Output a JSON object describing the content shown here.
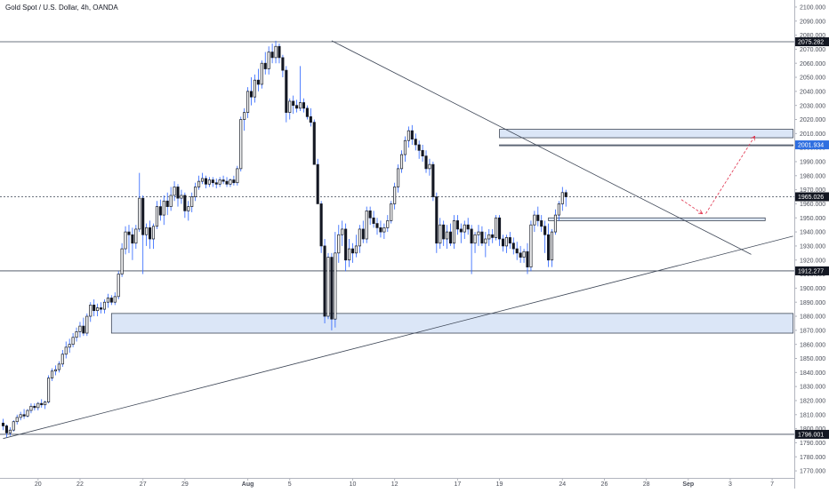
{
  "title": "Gold Spot / U.S. Dollar, 4h, OANDA",
  "colors": {
    "bull": "#131722",
    "bear": "#131722",
    "wick": "#2962ff",
    "zone_fill": "#dbe6f7",
    "zone_stroke": "#3d4656",
    "line": "#3d4656",
    "arrow": "#e0314c",
    "badge_blue": "#2e6ee0",
    "badge_dark": "#131722"
  },
  "chart_data": {
    "type": "candlestick",
    "title": "Gold Spot / U.S. Dollar, 4h, OANDA",
    "ylim": [
      1765,
      2105
    ],
    "y_ticks": [
      1770,
      1780,
      1790,
      1800,
      1810,
      1820,
      1830,
      1840,
      1850,
      1860,
      1870,
      1880,
      1890,
      1900,
      1910,
      1920,
      1930,
      1940,
      1950,
      1960,
      1970,
      1980,
      1990,
      2000,
      2010,
      2020,
      2030,
      2040,
      2050,
      2060,
      2070,
      2080,
      2090,
      2100
    ],
    "y_tick_labels": [
      "1770.000",
      "1780.000",
      "1790.000",
      "1800.000",
      "1810.000",
      "1820.000",
      "1830.000",
      "1840.000",
      "1850.000",
      "1860.000",
      "1870.000",
      "1880.000",
      "1890.000",
      "1900.000",
      "1910.000",
      "1920.000",
      "1930.000",
      "1940.000",
      "1950.000",
      "1960.000",
      "1970.000",
      "1980.000",
      "1990.000",
      "2000.000",
      "2010.000",
      "2020.000",
      "2030.000",
      "2040.000",
      "2050.000",
      "2060.000",
      "2070.000",
      "2080.000",
      "2090.000",
      "2100.000"
    ],
    "x_ticks": [
      {
        "label": "20",
        "bar": 10,
        "bold": false
      },
      {
        "label": "22",
        "bar": 22,
        "bold": false
      },
      {
        "label": "27",
        "bar": 40,
        "bold": false
      },
      {
        "label": "29",
        "bar": 52,
        "bold": false
      },
      {
        "label": "Aug",
        "bar": 70,
        "bold": true
      },
      {
        "label": "5",
        "bar": 82,
        "bold": false
      },
      {
        "label": "10",
        "bar": 100,
        "bold": false
      },
      {
        "label": "12",
        "bar": 112,
        "bold": false
      },
      {
        "label": "17",
        "bar": 130,
        "bold": false
      },
      {
        "label": "19",
        "bar": 142,
        "bold": false
      },
      {
        "label": "24",
        "bar": 160,
        "bold": false
      },
      {
        "label": "26",
        "bar": 172,
        "bold": false
      },
      {
        "label": "28",
        "bar": 184,
        "bold": false
      },
      {
        "label": "Sep",
        "bar": 196,
        "bold": true
      },
      {
        "label": "3",
        "bar": 208,
        "bold": false
      },
      {
        "label": "7",
        "bar": 220,
        "bold": false
      }
    ],
    "horizontal_levels": [
      {
        "value": 2075.282,
        "label": "2075.282",
        "style": "solid",
        "badge": "dark"
      },
      {
        "value": 1965.026,
        "label": "1965.026",
        "style": "dashed",
        "badge": "dark"
      },
      {
        "value": 1912.277,
        "label": "1912.277",
        "style": "solid",
        "badge": "dark"
      },
      {
        "value": 1796.001,
        "label": "1796.001",
        "style": "solid",
        "badge": "dark"
      }
    ],
    "price_badges": [
      {
        "value": 2001.934,
        "label": "2001.934",
        "badge": "blue"
      }
    ],
    "zones": [
      {
        "x0": 31,
        "x1": 226,
        "y0": 1868,
        "y1": 1882
      },
      {
        "x0": 142,
        "x1": 226,
        "y0": 2007,
        "y1": 2013
      },
      {
        "x0": 142,
        "x1": 226,
        "y0": 2001.934,
        "y1": 2001.934
      },
      {
        "x0": 156,
        "x1": 218,
        "y0": 1948,
        "y1": 1950
      }
    ],
    "trendlines": [
      {
        "x0": 94,
        "y0": 2076,
        "x1": 214,
        "y1": 1924
      },
      {
        "x0": 0,
        "y0": 1793,
        "x1": 226,
        "y1": 1937
      }
    ],
    "projection_arrows": [
      {
        "x0": 194,
        "y0": 1963,
        "x1": 200,
        "y1": 1953
      },
      {
        "x0": 201,
        "y0": 1953,
        "x1": 215,
        "y1": 2008
      }
    ],
    "candles": [
      [
        1804,
        1807,
        1799,
        1802
      ],
      [
        1802,
        1803,
        1794,
        1797
      ],
      [
        1797,
        1801,
        1795,
        1799
      ],
      [
        1799,
        1806,
        1798,
        1805
      ],
      [
        1805,
        1810,
        1803,
        1808
      ],
      [
        1808,
        1812,
        1806,
        1810
      ],
      [
        1810,
        1814,
        1807,
        1809
      ],
      [
        1809,
        1814,
        1808,
        1813
      ],
      [
        1813,
        1818,
        1811,
        1816
      ],
      [
        1816,
        1818,
        1813,
        1815
      ],
      [
        1815,
        1819,
        1813,
        1818
      ],
      [
        1818,
        1821,
        1815,
        1817
      ],
      [
        1817,
        1820,
        1814,
        1819
      ],
      [
        1819,
        1838,
        1818,
        1836
      ],
      [
        1836,
        1843,
        1834,
        1841
      ],
      [
        1841,
        1845,
        1838,
        1842
      ],
      [
        1842,
        1848,
        1840,
        1846
      ],
      [
        1846,
        1856,
        1844,
        1853
      ],
      [
        1853,
        1862,
        1850,
        1858
      ],
      [
        1858,
        1864,
        1854,
        1860
      ],
      [
        1860,
        1868,
        1858,
        1865
      ],
      [
        1865,
        1872,
        1862,
        1869
      ],
      [
        1869,
        1876,
        1865,
        1873
      ],
      [
        1873,
        1879,
        1866,
        1868
      ],
      [
        1868,
        1882,
        1866,
        1880
      ],
      [
        1880,
        1890,
        1876,
        1888
      ],
      [
        1888,
        1892,
        1880,
        1884
      ],
      [
        1884,
        1889,
        1880,
        1886
      ],
      [
        1886,
        1890,
        1882,
        1885
      ],
      [
        1885,
        1892,
        1882,
        1890
      ],
      [
        1890,
        1896,
        1886,
        1893
      ],
      [
        1893,
        1895,
        1888,
        1890
      ],
      [
        1890,
        1897,
        1888,
        1894
      ],
      [
        1894,
        1912,
        1892,
        1910
      ],
      [
        1910,
        1932,
        1908,
        1928
      ],
      [
        1928,
        1944,
        1924,
        1940
      ],
      [
        1940,
        1945,
        1925,
        1938
      ],
      [
        1938,
        1943,
        1920,
        1932
      ],
      [
        1932,
        1945,
        1928,
        1942
      ],
      [
        1942,
        1982,
        1940,
        1964
      ],
      [
        1964,
        1966,
        1910,
        1938
      ],
      [
        1938,
        1946,
        1930,
        1943
      ],
      [
        1943,
        1948,
        1928,
        1935
      ],
      [
        1935,
        1946,
        1928,
        1944
      ],
      [
        1944,
        1962,
        1942,
        1958
      ],
      [
        1958,
        1963,
        1948,
        1952
      ],
      [
        1952,
        1966,
        1945,
        1962
      ],
      [
        1962,
        1968,
        1952,
        1958
      ],
      [
        1958,
        1972,
        1955,
        1966
      ],
      [
        1966,
        1976,
        1962,
        1972
      ],
      [
        1972,
        1974,
        1958,
        1964
      ],
      [
        1964,
        1970,
        1960,
        1966
      ],
      [
        1966,
        1968,
        1950,
        1955
      ],
      [
        1955,
        1962,
        1948,
        1958
      ],
      [
        1958,
        1968,
        1954,
        1965
      ],
      [
        1965,
        1975,
        1962,
        1972
      ],
      [
        1972,
        1980,
        1970,
        1976
      ],
      [
        1976,
        1982,
        1974,
        1978
      ],
      [
        1978,
        1980,
        1971,
        1974
      ],
      [
        1974,
        1979,
        1972,
        1977
      ],
      [
        1977,
        1979,
        1972,
        1975
      ],
      [
        1975,
        1978,
        1971,
        1974
      ],
      [
        1974,
        1979,
        1972,
        1977
      ],
      [
        1977,
        1980,
        1974,
        1976
      ],
      [
        1976,
        1979,
        1972,
        1974
      ],
      [
        1974,
        1978,
        1972,
        1977
      ],
      [
        1977,
        1980,
        1973,
        1975
      ],
      [
        1975,
        1987,
        1973,
        1985
      ],
      [
        1985,
        2022,
        1983,
        2020
      ],
      [
        2020,
        2028,
        2012,
        2025
      ],
      [
        2025,
        2043,
        2021,
        2040
      ],
      [
        2040,
        2050,
        2030,
        2036
      ],
      [
        2036,
        2052,
        2032,
        2048
      ],
      [
        2048,
        2056,
        2040,
        2045
      ],
      [
        2045,
        2062,
        2042,
        2060
      ],
      [
        2060,
        2068,
        2052,
        2056
      ],
      [
        2056,
        2072,
        2052,
        2068
      ],
      [
        2068,
        2074,
        2060,
        2064
      ],
      [
        2064,
        2076,
        2060,
        2072
      ],
      [
        2072,
        2074,
        2060,
        2064
      ],
      [
        2064,
        2066,
        2050,
        2055
      ],
      [
        2055,
        2058,
        2018,
        2025
      ],
      [
        2025,
        2035,
        2020,
        2033
      ],
      [
        2033,
        2037,
        2024,
        2030
      ],
      [
        2030,
        2034,
        2025,
        2028
      ],
      [
        2028,
        2058,
        2026,
        2032
      ],
      [
        2032,
        2035,
        2025,
        2028
      ],
      [
        2028,
        2030,
        2020,
        2022
      ],
      [
        2022,
        2028,
        2015,
        2018
      ],
      [
        2018,
        2020,
        1990,
        1988
      ],
      [
        1988,
        1992,
        1962,
        1960
      ],
      [
        1960,
        1962,
        1925,
        1930
      ],
      [
        1930,
        1935,
        1875,
        1880
      ],
      [
        1880,
        1925,
        1878,
        1922
      ],
      [
        1922,
        1925,
        1870,
        1878
      ],
      [
        1878,
        1940,
        1872,
        1925
      ],
      [
        1925,
        1945,
        1918,
        1938
      ],
      [
        1938,
        1948,
        1930,
        1942
      ],
      [
        1942,
        1946,
        1912,
        1920
      ],
      [
        1920,
        1935,
        1915,
        1928
      ],
      [
        1928,
        1932,
        1918,
        1925
      ],
      [
        1925,
        1938,
        1922,
        1930
      ],
      [
        1930,
        1945,
        1925,
        1942
      ],
      [
        1942,
        1948,
        1932,
        1935
      ],
      [
        1935,
        1958,
        1932,
        1955
      ],
      [
        1955,
        1958,
        1945,
        1950
      ],
      [
        1950,
        1955,
        1943,
        1946
      ],
      [
        1946,
        1950,
        1938,
        1943
      ],
      [
        1943,
        1948,
        1936,
        1940
      ],
      [
        1940,
        1946,
        1935,
        1943
      ],
      [
        1943,
        1952,
        1940,
        1948
      ],
      [
        1948,
        1962,
        1946,
        1960
      ],
      [
        1960,
        1975,
        1956,
        1972
      ],
      [
        1972,
        1988,
        1968,
        1985
      ],
      [
        1985,
        1998,
        1982,
        1995
      ],
      [
        1995,
        2008,
        1990,
        2005
      ],
      [
        2005,
        2015,
        2000,
        2012
      ],
      [
        2012,
        2016,
        2002,
        2006
      ],
      [
        2006,
        2010,
        1998,
        2002
      ],
      [
        2002,
        2005,
        1992,
        1998
      ],
      [
        1998,
        2002,
        1990,
        1994
      ],
      [
        1994,
        1998,
        1982,
        1985
      ],
      [
        1985,
        1992,
        1980,
        1988
      ],
      [
        1988,
        1990,
        1962,
        1965
      ],
      [
        1965,
        1968,
        1925,
        1932
      ],
      [
        1932,
        1950,
        1928,
        1945
      ],
      [
        1945,
        1948,
        1930,
        1935
      ],
      [
        1935,
        1945,
        1928,
        1940
      ],
      [
        1940,
        1946,
        1930,
        1932
      ],
      [
        1932,
        1952,
        1928,
        1948
      ],
      [
        1948,
        1952,
        1938,
        1942
      ],
      [
        1942,
        1946,
        1932,
        1940
      ],
      [
        1940,
        1948,
        1935,
        1945
      ],
      [
        1945,
        1950,
        1938,
        1942
      ],
      [
        1942,
        1945,
        1910,
        1932
      ],
      [
        1932,
        1940,
        1925,
        1938
      ],
      [
        1938,
        1945,
        1930,
        1940
      ],
      [
        1940,
        1944,
        1930,
        1932
      ],
      [
        1932,
        1940,
        1922,
        1935
      ],
      [
        1935,
        1942,
        1930,
        1938
      ],
      [
        1938,
        1942,
        1932,
        1936
      ],
      [
        1936,
        1952,
        1934,
        1950
      ],
      [
        1950,
        1952,
        1930,
        1935
      ],
      [
        1935,
        1938,
        1926,
        1930
      ],
      [
        1930,
        1938,
        1925,
        1936
      ],
      [
        1936,
        1940,
        1928,
        1932
      ],
      [
        1932,
        1936,
        1924,
        1928
      ],
      [
        1928,
        1933,
        1920,
        1925
      ],
      [
        1925,
        1930,
        1918,
        1922
      ],
      [
        1922,
        1928,
        1918,
        1926
      ],
      [
        1926,
        1932,
        1910,
        1915
      ],
      [
        1915,
        1948,
        1912,
        1945
      ],
      [
        1945,
        1955,
        1940,
        1952
      ],
      [
        1952,
        1958,
        1944,
        1948
      ],
      [
        1948,
        1952,
        1940,
        1944
      ],
      [
        1944,
        1948,
        1925,
        1938
      ],
      [
        1938,
        1946,
        1915,
        1920
      ],
      [
        1920,
        1942,
        1915,
        1940
      ],
      [
        1940,
        1956,
        1938,
        1952
      ],
      [
        1952,
        1962,
        1948,
        1960
      ],
      [
        1960,
        1972,
        1955,
        1968
      ],
      [
        1968,
        1970,
        1958,
        1965
      ]
    ]
  }
}
